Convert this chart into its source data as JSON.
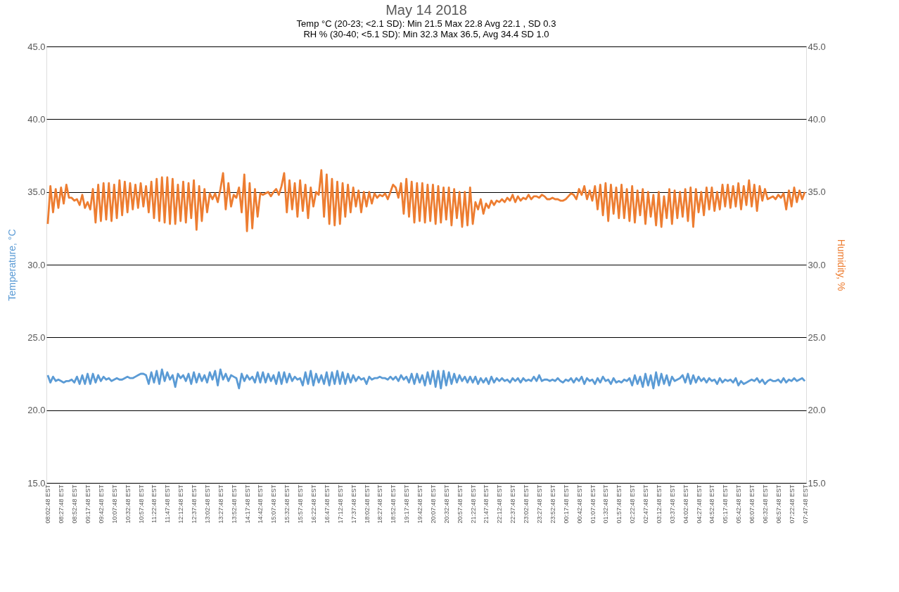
{
  "chart_data": {
    "type": "line",
    "title": "May 14 2018",
    "subtitle": "Temp °C (20-23; <2.1 SD): Min 21.5 Max 22.8 Avg 22.1 , SD 0.3\nRH % (30-40; <5.1 SD): Min 32.3 Max 36.5, Avg 34.4  SD 1.0",
    "ylabel": "Temperature, °C",
    "y2label": "Humidity, %",
    "categories": [
      "08:02:48 EST",
      null,
      null,
      null,
      null,
      "08:27:48 EST",
      null,
      null,
      null,
      null,
      "08:52:48 EST",
      null,
      null,
      null,
      null,
      "09:17:48 EST",
      null,
      null,
      null,
      null,
      "09:42:48 EST",
      null,
      null,
      null,
      null,
      "10:07:48 EST",
      null,
      null,
      null,
      null,
      "10:32:48 EST",
      null,
      null,
      null,
      null,
      "10:57:48 EST",
      null,
      null,
      null,
      null,
      "11:22:48 EST",
      null,
      null,
      null,
      null,
      "11:47:48 EST",
      null,
      null,
      null,
      null,
      "12:12:48 EST",
      null,
      null,
      null,
      null,
      "12:37:48 EST",
      null,
      null,
      null,
      null,
      "13:02:48 EST",
      null,
      null,
      null,
      null,
      "13:27:48 EST",
      null,
      null,
      null,
      null,
      "13:52:48 EST",
      null,
      null,
      null,
      null,
      "14:17:48 EST",
      null,
      null,
      null,
      null,
      "14:42:48 EST",
      null,
      null,
      null,
      null,
      "15:07:48 EST",
      null,
      null,
      null,
      null,
      "15:32:48 EST",
      null,
      null,
      null,
      null,
      "15:57:48 EST",
      null,
      null,
      null,
      null,
      "16:22:48 EST",
      null,
      null,
      null,
      null,
      "16:47:48 EST",
      null,
      null,
      null,
      null,
      "17:12:48 EST",
      null,
      null,
      null,
      null,
      "17:37:48 EST",
      null,
      null,
      null,
      null,
      "18:02:48 EST",
      null,
      null,
      null,
      null,
      "18:27:48 EST",
      null,
      null,
      null,
      null,
      "18:52:48 EST",
      null,
      null,
      null,
      null,
      "19:17:48 EST",
      null,
      null,
      null,
      null,
      "19:42:48 EST",
      null,
      null,
      null,
      null,
      "20:07:48 EST",
      null,
      null,
      null,
      null,
      "20:32:48 EST",
      null,
      null,
      null,
      null,
      "20:57:48 EST",
      null,
      null,
      null,
      null,
      "21:22:48 EST",
      null,
      null,
      null,
      null,
      "21:47:48 EST",
      null,
      null,
      null,
      null,
      "22:12:48 EST",
      null,
      null,
      null,
      null,
      "22:37:48 EST",
      null,
      null,
      null,
      null,
      "23:02:48 EST",
      null,
      null,
      null,
      null,
      "23:27:48 EST",
      null,
      null,
      null,
      null,
      "23:52:48 EST",
      null,
      null,
      null,
      null,
      "00:17:48 EST",
      null,
      null,
      null,
      null,
      "00:42:48 EST",
      null,
      null,
      null,
      null,
      "01:07:48 EST",
      null,
      null,
      null,
      null,
      "01:32:48 EST",
      null,
      null,
      null,
      null,
      "01:57:48 EST",
      null,
      null,
      null,
      null,
      "02:22:48 EST",
      null,
      null,
      null,
      null,
      "02:47:48 EST",
      null,
      null,
      null,
      null,
      "03:12:48 EST",
      null,
      null,
      null,
      null,
      "03:37:48 EST",
      null,
      null,
      null,
      null,
      "04:02:48 EST",
      null,
      null,
      null,
      null,
      "04:27:48 EST",
      null,
      null,
      null,
      null,
      "04:52:48 EST",
      null,
      null,
      null,
      null,
      "05:17:48 EST",
      null,
      null,
      null,
      null,
      "05:42:48 EST",
      null,
      null,
      null,
      null,
      "06:07:48 EST",
      null,
      null,
      null,
      null,
      "06:32:48 EST",
      null,
      null,
      null,
      null,
      "06:57:48 EST",
      null,
      null,
      null,
      null,
      "07:22:48 EST",
      null,
      null,
      null,
      null,
      "07:47:48 EST"
    ],
    "series": [
      {
        "color": "#5b9bd5",
        "values": [
          22.4,
          21.9,
          22.3,
          22.0,
          22.1,
          22.0,
          21.9,
          22.0,
          22.0,
          22.1,
          21.9,
          22.3,
          21.8,
          22.4,
          21.8,
          22.5,
          21.8,
          22.5,
          21.9,
          22.4,
          22.0,
          22.3,
          22.1,
          22.2,
          22.0,
          22.1,
          22.2,
          22.1,
          22.1,
          22.2,
          22.3,
          22.2,
          22.2,
          22.3,
          22.4,
          22.5,
          22.5,
          22.4,
          21.8,
          22.6,
          21.9,
          22.7,
          21.8,
          22.8,
          22.0,
          22.6,
          22.1,
          22.4,
          21.6,
          22.5,
          22.2,
          22.4,
          22.0,
          22.5,
          21.8,
          22.6,
          21.9,
          22.5,
          22.0,
          22.4,
          21.9,
          22.6,
          22.1,
          22.7,
          21.7,
          22.8,
          22.1,
          22.5,
          22.0,
          22.4,
          22.3,
          22.2,
          21.5,
          22.5,
          22.0,
          22.4,
          22.1,
          22.3,
          21.9,
          22.6,
          21.9,
          22.6,
          21.9,
          22.5,
          22.0,
          22.4,
          21.8,
          22.6,
          21.8,
          22.6,
          21.9,
          22.5,
          22.0,
          22.3,
          22.1,
          22.2,
          21.7,
          22.6,
          21.8,
          22.7,
          21.7,
          22.5,
          21.9,
          22.4,
          21.8,
          22.6,
          21.7,
          22.6,
          21.8,
          22.7,
          21.8,
          22.6,
          21.8,
          22.5,
          21.9,
          22.4,
          22.0,
          22.3,
          22.1,
          22.2,
          21.8,
          22.3,
          22.1,
          22.2,
          22.2,
          22.3,
          22.2,
          22.2,
          22.1,
          22.3,
          22.1,
          22.3,
          22.0,
          22.4,
          22.1,
          22.3,
          21.9,
          22.5,
          21.8,
          22.5,
          21.9,
          22.4,
          21.7,
          22.6,
          21.8,
          22.7,
          21.6,
          22.7,
          21.5,
          22.7,
          21.7,
          22.6,
          21.8,
          22.5,
          21.9,
          22.4,
          22.0,
          22.3,
          21.9,
          22.3,
          21.9,
          22.3,
          21.8,
          22.2,
          21.9,
          22.2,
          21.8,
          22.3,
          21.9,
          22.2,
          22.0,
          22.2,
          22.0,
          22.1,
          21.9,
          22.2,
          22.0,
          22.2,
          21.9,
          22.2,
          22.0,
          22.1,
          22.0,
          22.3,
          22.0,
          22.4,
          22.0,
          22.1,
          22.1,
          22.0,
          22.1,
          22.0,
          22.2,
          22.0,
          21.9,
          22.1,
          22.0,
          22.2,
          21.9,
          22.2,
          22.0,
          22.3,
          21.8,
          22.2,
          22.0,
          22.1,
          21.8,
          22.2,
          21.9,
          22.3,
          22.0,
          22.1,
          21.8,
          22.2,
          21.9,
          22.0,
          21.9,
          22.1,
          22.0,
          22.2,
          21.7,
          22.4,
          21.8,
          22.3,
          21.6,
          22.5,
          21.7,
          22.4,
          21.5,
          22.6,
          21.7,
          22.5,
          21.8,
          22.4,
          21.7,
          22.3,
          22.0,
          22.1,
          22.2,
          22.4,
          21.9,
          22.5,
          21.8,
          22.4,
          21.9,
          22.3,
          22.0,
          22.2,
          21.9,
          22.2,
          22.0,
          22.1,
          21.8,
          22.2,
          21.9,
          22.1,
          22.0,
          22.1,
          21.9,
          22.2,
          21.7,
          22.0,
          21.8,
          21.9,
          22.0,
          22.1,
          22.0,
          22.2,
          21.9,
          22.1,
          21.8,
          22.0,
          22.1,
          22.0,
          22.0,
          22.1,
          21.9,
          22.2,
          21.9,
          22.1,
          22.0,
          22.2,
          22.0,
          22.1,
          22.2,
          22.0
        ]
      },
      {
        "color": "#ed7d31",
        "axis": "y2",
        "values": [
          32.8,
          35.4,
          33.6,
          35.2,
          33.9,
          35.3,
          34.2,
          35.5,
          34.6,
          34.6,
          34.4,
          34.5,
          34.1,
          34.8,
          33.9,
          34.3,
          33.8,
          35.2,
          32.9,
          35.5,
          33.0,
          35.6,
          33.1,
          35.6,
          33.0,
          35.5,
          33.2,
          35.8,
          33.4,
          35.7,
          33.6,
          35.6,
          33.8,
          35.5,
          33.9,
          35.6,
          34.0,
          35.4,
          33.6,
          35.7,
          33.2,
          35.9,
          33.0,
          36.0,
          32.9,
          36.0,
          32.8,
          35.9,
          32.8,
          35.5,
          33.0,
          35.7,
          32.9,
          35.6,
          33.2,
          35.8,
          32.4,
          35.4,
          33.0,
          35.2,
          33.6,
          34.9,
          34.5,
          34.9,
          34.3,
          35.2,
          36.3,
          33.8,
          35.6,
          34.0,
          34.8,
          34.6,
          35.3,
          33.6,
          36.2,
          32.3,
          35.6,
          32.5,
          35.2,
          33.3,
          34.9,
          34.8,
          34.9,
          35.0,
          34.7,
          35.0,
          35.2,
          34.8,
          35.4,
          36.3,
          33.6,
          35.8,
          33.8,
          35.6,
          33.3,
          35.8,
          33.7,
          35.5,
          33.2,
          35.3,
          34.0,
          35.0,
          34.8,
          36.5,
          33.3,
          36.2,
          32.8,
          35.9,
          32.7,
          35.7,
          32.8,
          35.6,
          33.3,
          35.5,
          33.6,
          35.3,
          34.0,
          35.1,
          33.6,
          35.0,
          34.0,
          35.0,
          34.2,
          34.9,
          34.6,
          34.8,
          34.7,
          34.9,
          34.5,
          35.0,
          35.5,
          35.3,
          34.6,
          35.6,
          33.5,
          35.9,
          33.3,
          35.7,
          32.9,
          35.6,
          33.0,
          35.6,
          32.9,
          35.5,
          33.0,
          35.5,
          32.8,
          35.4,
          32.9,
          35.3,
          33.1,
          35.3,
          32.7,
          35.2,
          33.2,
          35.0,
          32.6,
          35.0,
          32.7,
          35.3,
          32.8,
          34.3,
          33.8,
          34.5,
          33.5,
          34.2,
          33.9,
          34.4,
          34.1,
          34.4,
          34.3,
          34.5,
          34.3,
          34.6,
          34.4,
          34.8,
          34.3,
          34.7,
          34.4,
          34.6,
          34.5,
          34.8,
          34.5,
          34.7,
          34.7,
          34.6,
          34.8,
          34.7,
          34.5,
          34.5,
          34.6,
          34.5,
          34.5,
          34.4,
          34.4,
          34.5,
          34.7,
          34.9,
          34.8,
          34.5,
          35.2,
          34.8,
          35.4,
          34.5,
          35.1,
          34.4,
          35.4,
          33.8,
          35.5,
          33.4,
          35.6,
          33.0,
          35.5,
          33.5,
          35.3,
          33.2,
          35.5,
          33.2,
          35.2,
          33.0,
          35.4,
          32.9,
          35.1,
          33.4,
          35.2,
          32.8,
          35.0,
          33.3,
          34.8,
          32.7,
          35.0,
          32.6,
          34.7,
          33.2,
          35.2,
          32.8,
          35.1,
          33.2,
          35.0,
          33.3,
          35.2,
          33.0,
          35.3,
          32.6,
          35.2,
          33.6,
          35.0,
          33.4,
          35.3,
          33.8,
          35.3,
          33.7,
          35.0,
          33.8,
          35.5,
          34.0,
          35.5,
          33.9,
          35.4,
          34.0,
          35.6,
          33.8,
          35.4,
          34.1,
          35.8,
          34.0,
          35.5,
          33.7,
          35.4,
          34.4,
          35.2,
          34.5,
          34.6,
          34.7,
          34.5,
          34.8,
          34.6,
          34.9,
          33.8,
          35.1,
          34.0,
          35.3,
          34.3,
          35.1,
          34.5,
          35.0
        ]
      }
    ],
    "ylim": [
      15,
      45
    ],
    "yticks": [
      {
        "value": 15,
        "label": "15.0"
      },
      {
        "value": 20,
        "label": "20.0"
      },
      {
        "value": 25,
        "label": "25.0"
      },
      {
        "value": 30,
        "label": "30.0"
      },
      {
        "value": 35,
        "label": "35.0"
      },
      {
        "value": 40,
        "label": "40.0"
      },
      {
        "value": 45,
        "label": "45.0"
      }
    ],
    "y2lim": [
      15,
      45
    ],
    "y2ticks": [
      {
        "value": 15,
        "label": "15.0"
      },
      {
        "value": 20,
        "label": "20.0"
      },
      {
        "value": 25,
        "label": "25.0"
      },
      {
        "value": 30,
        "label": "30.0"
      },
      {
        "value": 35,
        "label": "35.0"
      },
      {
        "value": 40,
        "label": "40.0"
      },
      {
        "value": 45,
        "label": "45.0"
      }
    ],
    "grid": "y"
  }
}
